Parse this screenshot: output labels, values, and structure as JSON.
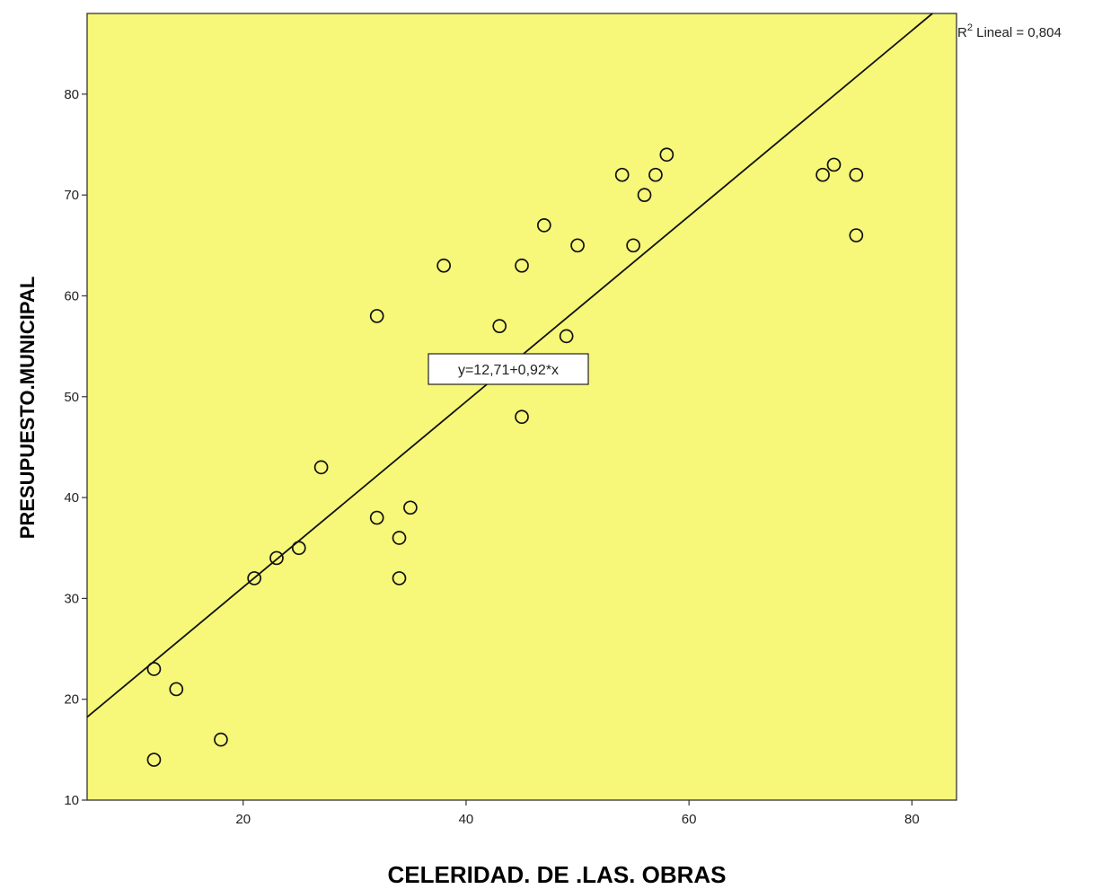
{
  "chart_data": {
    "type": "scatter",
    "xlabel": "CELERIDAD. DE .LAS. OBRAS",
    "ylabel": "PRESUPUESTO.MUNICIPAL",
    "xlim": [
      6,
      84
    ],
    "ylim": [
      10,
      88
    ],
    "xticks": [
      20,
      40,
      60,
      80
    ],
    "yticks": [
      10,
      20,
      30,
      40,
      50,
      60,
      70,
      80
    ],
    "grid": false,
    "colors": {
      "plot_background": "#f7f77a",
      "marker": "#111111",
      "line": "#111111"
    },
    "points": [
      {
        "x": 12,
        "y": 23
      },
      {
        "x": 12,
        "y": 14
      },
      {
        "x": 14,
        "y": 21
      },
      {
        "x": 18,
        "y": 16
      },
      {
        "x": 21,
        "y": 32
      },
      {
        "x": 23,
        "y": 34
      },
      {
        "x": 25,
        "y": 35
      },
      {
        "x": 27,
        "y": 43
      },
      {
        "x": 32,
        "y": 58
      },
      {
        "x": 32,
        "y": 38
      },
      {
        "x": 34,
        "y": 36
      },
      {
        "x": 34,
        "y": 32
      },
      {
        "x": 35,
        "y": 39
      },
      {
        "x": 38,
        "y": 63
      },
      {
        "x": 43,
        "y": 57
      },
      {
        "x": 45,
        "y": 63
      },
      {
        "x": 45,
        "y": 48
      },
      {
        "x": 47,
        "y": 67
      },
      {
        "x": 49,
        "y": 56
      },
      {
        "x": 50,
        "y": 65
      },
      {
        "x": 54,
        "y": 72
      },
      {
        "x": 55,
        "y": 65
      },
      {
        "x": 56,
        "y": 70
      },
      {
        "x": 57,
        "y": 72
      },
      {
        "x": 58,
        "y": 74
      },
      {
        "x": 72,
        "y": 72
      },
      {
        "x": 73,
        "y": 73
      },
      {
        "x": 75,
        "y": 72
      },
      {
        "x": 75,
        "y": 66
      }
    ],
    "fit": {
      "intercept": 12.71,
      "slope": 0.92
    },
    "annotations": {
      "r2_prefix": "R",
      "r2_sup": "2",
      "r2_rest": " Lineal = 0,804",
      "equation": "y=12,71+0,92*x"
    }
  }
}
